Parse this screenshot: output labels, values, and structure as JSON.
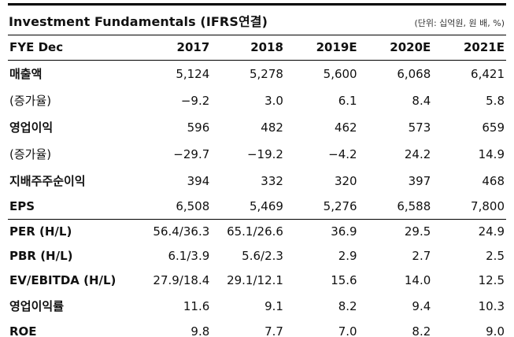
{
  "header": {
    "title": "Investment Fundamentals (IFRS연결)",
    "unit_note": "(단위: 십억원, 원 배, %)"
  },
  "table": {
    "columns": [
      "FYE Dec",
      "2017",
      "2018",
      "2019E",
      "2020E",
      "2021E"
    ],
    "rows": [
      {
        "label": "매출액",
        "values": [
          "5,124",
          "5,278",
          "5,600",
          "6,068",
          "6,421"
        ]
      },
      {
        "label": "(증가율)",
        "values": [
          "−9.2",
          "3.0",
          "6.1",
          "8.4",
          "5.8"
        ]
      },
      {
        "label": "영업이익",
        "values": [
          "596",
          "482",
          "462",
          "573",
          "659"
        ]
      },
      {
        "label": "(증가율)",
        "values": [
          "−29.7",
          "−19.2",
          "−4.2",
          "24.2",
          "14.9"
        ]
      },
      {
        "label": "지배주주순이익",
        "values": [
          "394",
          "332",
          "320",
          "397",
          "468"
        ]
      },
      {
        "label": "EPS",
        "values": [
          "6,508",
          "5,469",
          "5,276",
          "6,588",
          "7,800"
        ]
      },
      {
        "label": "PER (H/L)",
        "values": [
          "56.4/36.3",
          "65.1/26.6",
          "36.9",
          "29.5",
          "24.9"
        ]
      },
      {
        "label": "PBR (H/L)",
        "values": [
          "6.1/3.9",
          "5.6/2.3",
          "2.9",
          "2.7",
          "2.5"
        ]
      },
      {
        "label": "EV/EBITDA (H/L)",
        "values": [
          "27.9/18.4",
          "29.1/12.1",
          "15.6",
          "14.0",
          "12.5"
        ]
      },
      {
        "label": "영업이익률",
        "values": [
          "11.6",
          "9.1",
          "8.2",
          "9.4",
          "10.3"
        ]
      },
      {
        "label": "ROE",
        "values": [
          "9.8",
          "7.7",
          "7.0",
          "8.2",
          "9.0"
        ]
      }
    ]
  }
}
